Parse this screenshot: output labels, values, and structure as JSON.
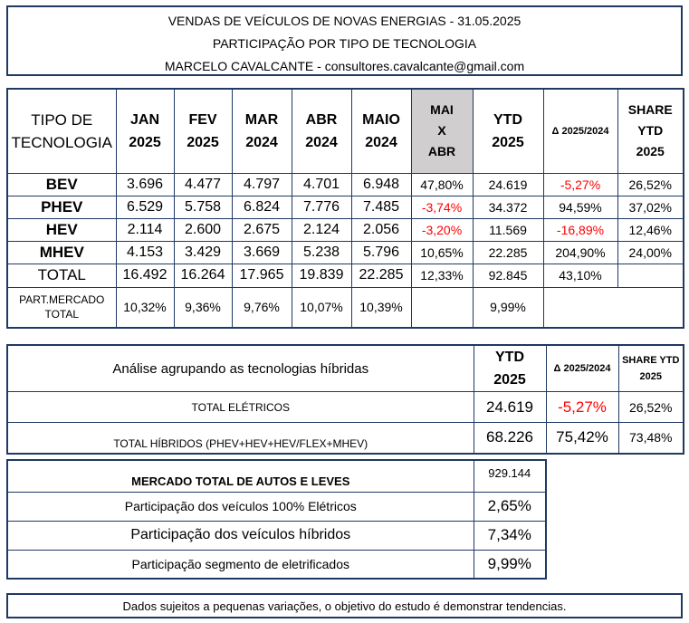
{
  "header": {
    "line1": "VENDAS DE VEÍCULOS DE NOVAS ENERGIAS - 31.05.2025",
    "line2": "PARTICIPAÇÃO POR TIPO DE TECNOLOGIA",
    "line3": "MARCELO CAVALCANTE - consultores.cavalcante@gmail.com"
  },
  "main_table": {
    "headers": {
      "tipo_1": "TIPO DE",
      "tipo_2": "TECNOLOGIA",
      "jan_1": "JAN",
      "jan_2": "2025",
      "fev_1": "FEV",
      "fev_2": "2025",
      "mar_1": "MAR",
      "mar_2": "2024",
      "abr_1": "ABR",
      "abr_2": "2024",
      "maio_1": "MAIO",
      "maio_2": "2024",
      "maix_1": "MAI",
      "maix_2": "X",
      "maix_3": "ABR",
      "ytd_1": "YTD",
      "ytd_2": "2025",
      "delta": "Δ 2025/2024",
      "share_1": "SHARE",
      "share_2": "YTD",
      "share_3": "2025"
    },
    "rows": [
      {
        "label": "BEV",
        "jan": "3.696",
        "fev": "4.477",
        "mar": "4.797",
        "abr": "4.701",
        "maio": "6.948",
        "maix": "47,80%",
        "ytd": "24.619",
        "delta": "-5,27%",
        "share": "26,52%"
      },
      {
        "label": "PHEV",
        "jan": "6.529",
        "fev": "5.758",
        "mar": "6.824",
        "abr": "7.776",
        "maio": "7.485",
        "maix": "-3,74%",
        "ytd": "34.372",
        "delta": "94,59%",
        "share": "37,02%"
      },
      {
        "label": "HEV",
        "jan": "2.114",
        "fev": "2.600",
        "mar": "2.675",
        "abr": "2.124",
        "maio": "2.056",
        "maix": "-3,20%",
        "ytd": "11.569",
        "delta": "-16,89%",
        "share": "12,46%"
      },
      {
        "label": "MHEV",
        "jan": "4.153",
        "fev": "3.429",
        "mar": "3.669",
        "abr": "5.238",
        "maio": "5.796",
        "maix": "10,65%",
        "ytd": "22.285",
        "delta": "204,90%",
        "share": "24,00%"
      }
    ],
    "total": {
      "label": "TOTAL",
      "jan": "16.492",
      "fev": "16.264",
      "mar": "17.965",
      "abr": "19.839",
      "maio": "22.285",
      "maix": "12,33%",
      "ytd": "92.845",
      "delta": "43,10%"
    },
    "part": {
      "label_1": "PART.MERCADO",
      "label_2": "TOTAL",
      "jan": "10,32%",
      "fev": "9,36%",
      "mar": "9,76%",
      "abr": "10,07%",
      "maio": "10,39%",
      "ytd": "9,99%"
    }
  },
  "hybrid_table": {
    "title": "Análise agrupando as tecnologias híbridas",
    "ytd_1": "YTD",
    "ytd_2": "2025",
    "delta": "Δ 2025/2024",
    "share_1": "SHARE YTD",
    "share_2": "2025",
    "rows": [
      {
        "label": "TOTAL ELÉTRICOS",
        "ytd": "24.619",
        "delta": "-5,27%",
        "share": "26,52%"
      },
      {
        "label": "TOTAL HÍBRIDOS (PHEV+HEV+HEV/FLEX+MHEV)",
        "ytd": "68.226",
        "delta": "75,42%",
        "share": "73,48%"
      }
    ]
  },
  "market_table": {
    "rows": [
      {
        "label": "MERCADO TOTAL DE AUTOS E LEVES",
        "value": "929.144"
      },
      {
        "label": "Participação dos veículos 100% Elétricos",
        "value": "2,65%"
      },
      {
        "label": "Participação dos veículos híbridos",
        "value": "7,34%"
      },
      {
        "label": "Participação segmento de eletrificados",
        "value": "9,99%"
      }
    ]
  },
  "footer": {
    "note": "Dados sujeitos a pequenas variações, o objetivo do estudo é demonstrar tendencias."
  },
  "colors": {
    "border": "#1f3864",
    "negative": "#ff0000",
    "highlight": "#d0cece"
  }
}
